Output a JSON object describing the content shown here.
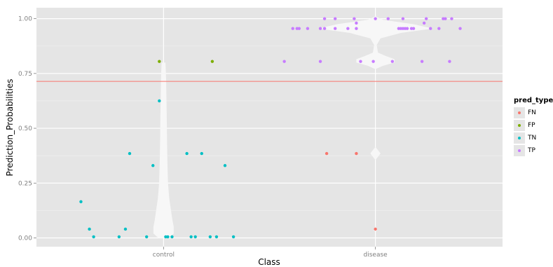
{
  "chart_data": {
    "type": "scatter",
    "subtype": "jittered scatter with violin overlay",
    "xlabel": "Class",
    "ylabel": "Prediction_Probabilities",
    "categories": [
      "control",
      "disease"
    ],
    "ylim": [
      -0.04,
      1.05
    ],
    "yticks": [
      0.0,
      0.25,
      0.5,
      0.75,
      1.0
    ],
    "ytick_labels": [
      "0.00",
      "0.25",
      "0.50",
      "0.75",
      "1.00"
    ],
    "threshold_line": {
      "y": 0.714,
      "color": "#f8766d"
    },
    "grid": true,
    "background": "#e5e5e5",
    "legend": {
      "title": "pred_type",
      "position": "right",
      "entries": [
        {
          "label": "FN",
          "color": "#f8766d"
        },
        {
          "label": "FP",
          "color": "#7cae00"
        },
        {
          "label": "TN",
          "color": "#00bfc4"
        },
        {
          "label": "TP",
          "color": "#c77cff"
        }
      ]
    },
    "series": [
      {
        "name": "FN",
        "color": "#f8766d",
        "points": [
          {
            "x": 1.77,
            "y": 0.385
          },
          {
            "x": 1.91,
            "y": 0.385
          },
          {
            "x": 2.0,
            "y": 0.04
          }
        ]
      },
      {
        "name": "FP",
        "color": "#7cae00",
        "points": [
          {
            "x": 0.98,
            "y": 0.805
          },
          {
            "x": 1.23,
            "y": 0.805
          }
        ]
      },
      {
        "name": "TN",
        "color": "#00bfc4",
        "points": [
          {
            "x": 0.61,
            "y": 0.165
          },
          {
            "x": 0.65,
            "y": 0.04
          },
          {
            "x": 0.67,
            "y": 0.005
          },
          {
            "x": 0.79,
            "y": 0.005
          },
          {
            "x": 0.82,
            "y": 0.04
          },
          {
            "x": 0.84,
            "y": 0.385
          },
          {
            "x": 0.92,
            "y": 0.005
          },
          {
            "x": 0.95,
            "y": 0.33
          },
          {
            "x": 0.98,
            "y": 0.625
          },
          {
            "x": 1.01,
            "y": 0.005
          },
          {
            "x": 1.02,
            "y": 0.005
          },
          {
            "x": 1.04,
            "y": 0.005
          },
          {
            "x": 1.11,
            "y": 0.385
          },
          {
            "x": 1.13,
            "y": 0.005
          },
          {
            "x": 1.15,
            "y": 0.005
          },
          {
            "x": 1.18,
            "y": 0.385
          },
          {
            "x": 1.22,
            "y": 0.005
          },
          {
            "x": 1.25,
            "y": 0.005
          },
          {
            "x": 1.29,
            "y": 0.33
          },
          {
            "x": 1.33,
            "y": 0.005
          }
        ]
      },
      {
        "name": "TP",
        "color": "#c77cff",
        "points": [
          {
            "x": 1.61,
            "y": 0.955
          },
          {
            "x": 1.63,
            "y": 0.955
          },
          {
            "x": 1.64,
            "y": 0.955
          },
          {
            "x": 1.68,
            "y": 0.955
          },
          {
            "x": 1.74,
            "y": 0.955
          },
          {
            "x": 1.76,
            "y": 0.955
          },
          {
            "x": 1.81,
            "y": 0.955
          },
          {
            "x": 1.87,
            "y": 0.955
          },
          {
            "x": 1.91,
            "y": 0.955
          },
          {
            "x": 2.11,
            "y": 0.955
          },
          {
            "x": 2.12,
            "y": 0.955
          },
          {
            "x": 2.13,
            "y": 0.955
          },
          {
            "x": 2.14,
            "y": 0.955
          },
          {
            "x": 2.15,
            "y": 0.955
          },
          {
            "x": 2.17,
            "y": 0.955
          },
          {
            "x": 2.18,
            "y": 0.955
          },
          {
            "x": 2.26,
            "y": 0.955
          },
          {
            "x": 2.3,
            "y": 0.955
          },
          {
            "x": 2.4,
            "y": 0.955
          },
          {
            "x": 1.76,
            "y": 1.0
          },
          {
            "x": 1.81,
            "y": 1.0
          },
          {
            "x": 1.9,
            "y": 1.0
          },
          {
            "x": 2.0,
            "y": 1.0
          },
          {
            "x": 2.06,
            "y": 1.0
          },
          {
            "x": 2.13,
            "y": 1.0
          },
          {
            "x": 2.24,
            "y": 1.0
          },
          {
            "x": 2.32,
            "y": 1.0
          },
          {
            "x": 2.33,
            "y": 1.0
          },
          {
            "x": 2.36,
            "y": 1.0
          },
          {
            "x": 1.91,
            "y": 0.98
          },
          {
            "x": 2.23,
            "y": 0.98
          },
          {
            "x": 1.57,
            "y": 0.805
          },
          {
            "x": 1.74,
            "y": 0.805
          },
          {
            "x": 1.93,
            "y": 0.805
          },
          {
            "x": 1.99,
            "y": 0.805
          },
          {
            "x": 2.08,
            "y": 0.805
          },
          {
            "x": 2.22,
            "y": 0.805
          },
          {
            "x": 2.35,
            "y": 0.805
          }
        ]
      }
    ],
    "violins": [
      {
        "category": "control",
        "profile": [
          [
            0.0,
            0.04
          ],
          [
            0.02,
            0.08
          ],
          [
            0.05,
            0.08
          ],
          [
            0.08,
            0.07
          ],
          [
            0.12,
            0.06
          ],
          [
            0.18,
            0.045
          ],
          [
            0.25,
            0.035
          ],
          [
            0.35,
            0.03
          ],
          [
            0.45,
            0.027
          ],
          [
            0.55,
            0.025
          ],
          [
            0.65,
            0.022
          ],
          [
            0.72,
            0.02
          ],
          [
            0.76,
            0.018
          ],
          [
            0.8,
            0.015
          ]
        ]
      },
      {
        "category": "disease",
        "profile": [
          [
            0.03,
            0.003
          ],
          [
            0.035,
            0.015
          ],
          [
            0.045,
            0.003
          ],
          [
            0.06,
            0.0
          ],
          [
            0.355,
            0.0
          ],
          [
            0.37,
            0.02
          ],
          [
            0.385,
            0.04
          ],
          [
            0.4,
            0.02
          ],
          [
            0.415,
            0.0
          ],
          [
            0.77,
            0.0
          ],
          [
            0.785,
            0.06
          ],
          [
            0.8,
            0.15
          ],
          [
            0.815,
            0.15
          ],
          [
            0.83,
            0.08
          ],
          [
            0.845,
            0.02
          ],
          [
            0.88,
            0.01
          ],
          [
            0.91,
            0.04
          ],
          [
            0.935,
            0.2
          ],
          [
            0.955,
            0.45
          ],
          [
            0.975,
            0.3
          ],
          [
            0.995,
            0.06
          ],
          [
            1.01,
            0.003
          ]
        ]
      }
    ]
  }
}
